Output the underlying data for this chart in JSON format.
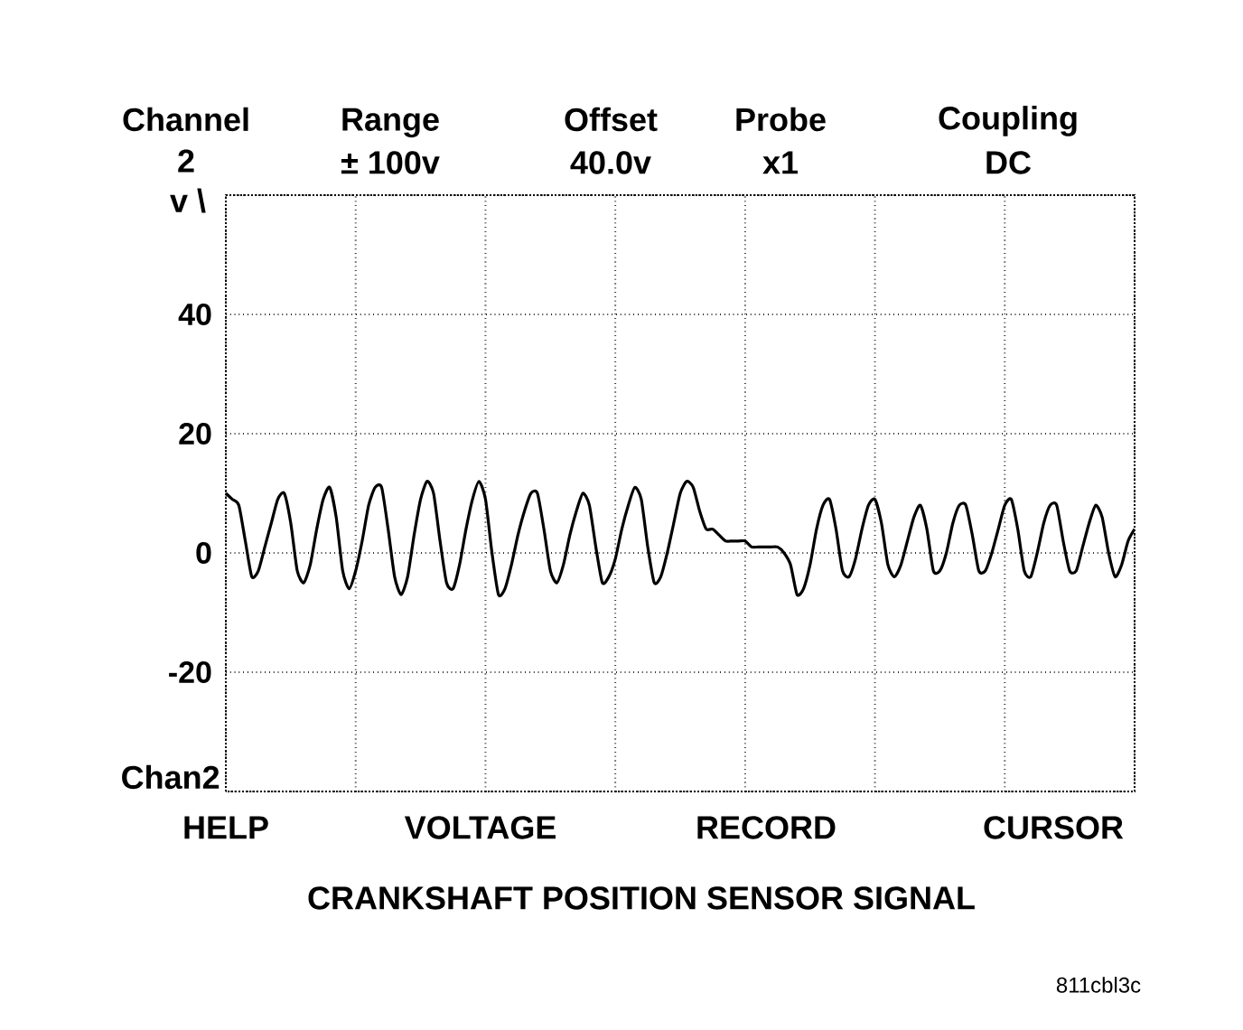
{
  "chart_data": {
    "type": "line",
    "title": "CRANKSHAFT POSITION SENSOR SIGNAL",
    "annotations": [
      "Channel",
      "2",
      "Range",
      "± 100v",
      "Offset",
      "40.0v",
      "Probe",
      "x1",
      "Coupling",
      "DC",
      "v \\",
      "Chan2",
      "HELP",
      "VOLTAGE",
      "RECORD",
      "CURSOR",
      "811cbl3c"
    ],
    "categories": [
      null,
      null,
      null,
      null,
      null,
      null,
      null,
      null,
      null,
      null,
      null,
      null,
      null,
      null,
      null,
      null,
      null,
      null,
      null,
      null,
      null,
      null,
      null,
      null,
      null,
      null,
      null,
      null,
      null,
      null,
      null,
      null,
      null,
      null,
      null,
      null,
      null,
      null,
      null,
      null,
      null,
      null,
      null,
      null,
      null,
      null,
      null,
      null,
      null,
      null,
      null,
      null,
      null,
      null,
      null,
      null,
      null,
      null,
      null,
      null,
      null,
      null,
      null,
      null,
      null,
      null,
      null,
      null,
      null,
      null,
      null,
      null,
      null,
      null,
      null,
      null,
      null,
      null,
      null,
      null,
      null,
      null,
      null,
      null,
      null,
      null,
      null,
      null,
      null,
      null,
      null,
      null,
      null,
      null,
      null,
      null,
      null,
      null,
      null,
      null,
      null,
      null,
      null,
      null,
      null,
      null,
      null,
      null,
      null,
      null,
      null,
      null,
      null,
      null,
      null,
      null,
      null,
      null,
      null,
      null,
      null,
      null,
      null,
      null,
      null,
      null,
      null,
      null,
      null,
      null,
      null,
      null,
      null,
      null,
      null,
      null,
      null,
      null,
      null,
      null,
      null
    ],
    "values": [
      10,
      9,
      8,
      2,
      -4,
      -3,
      1,
      5,
      9,
      10,
      5,
      -3,
      -5,
      -2,
      4,
      9,
      11,
      6,
      -3,
      -6,
      -3,
      2,
      8,
      11,
      11,
      4,
      -4,
      -7,
      -4,
      3,
      9,
      12,
      10,
      2,
      -5,
      -6,
      -2,
      4,
      9,
      12,
      9,
      0,
      -7,
      -6,
      -2,
      3,
      7,
      10,
      10,
      4,
      -3,
      -5,
      -2,
      3,
      7,
      10,
      8,
      1,
      -5,
      -4,
      -1,
      4,
      8,
      11,
      9,
      1,
      -5,
      -4,
      0,
      5,
      10,
      12,
      11,
      7,
      4,
      4,
      3,
      2,
      2,
      2,
      2,
      1,
      1,
      1,
      1,
      1,
      0,
      -2,
      -7,
      -6,
      -2,
      4,
      8,
      9,
      4,
      -3,
      -4,
      -1,
      4,
      8,
      9,
      5,
      -2,
      -4,
      -2,
      2,
      6,
      8,
      4,
      -3,
      -3,
      0,
      5,
      8,
      8,
      3,
      -3,
      -3,
      0,
      4,
      8,
      9,
      4,
      -3,
      -4,
      0,
      5,
      8,
      8,
      2,
      -3,
      -3,
      1,
      5,
      8,
      6,
      0,
      -4,
      -2,
      2,
      4
    ],
    "color": "#000000",
    "ylim": [
      -40,
      60
    ],
    "yticks": [
      {
        "value": -40,
        "label": null
      },
      -20,
      0,
      20,
      40,
      {
        "value": 60,
        "label": null
      }
    ],
    "grid": true,
    "tick_labels": "y"
  }
}
